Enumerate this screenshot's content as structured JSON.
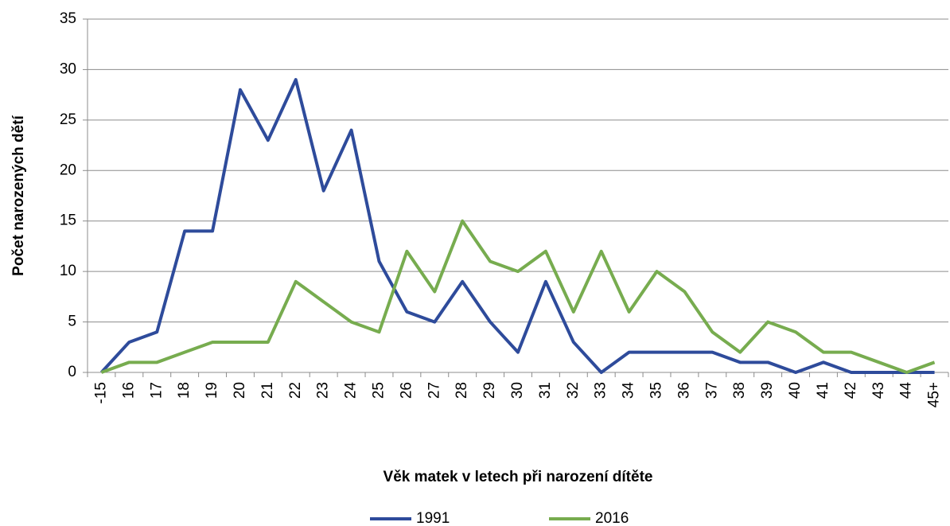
{
  "chart_data": {
    "type": "line",
    "x_label": "Věk matek v letech při narození dítěte",
    "y_label": "Počet narozených dětí",
    "categories": [
      "-15",
      "16",
      "17",
      "18",
      "19",
      "20",
      "21",
      "22",
      "23",
      "24",
      "25",
      "26",
      "27",
      "28",
      "29",
      "30",
      "31",
      "32",
      "33",
      "34",
      "35",
      "36",
      "37",
      "38",
      "39",
      "40",
      "41",
      "42",
      "43",
      "44",
      "45+"
    ],
    "series": [
      {
        "name": "1991",
        "color": "#2e4b9b",
        "values": [
          0,
          3,
          4,
          14,
          14,
          28,
          23,
          29,
          18,
          24,
          11,
          6,
          5,
          9,
          5,
          2,
          9,
          3,
          0,
          2,
          2,
          2,
          2,
          1,
          1,
          0,
          1,
          0,
          0,
          0,
          0
        ]
      },
      {
        "name": "2016",
        "color": "#77ac4f",
        "values": [
          0,
          1,
          1,
          2,
          3,
          3,
          3,
          9,
          7,
          5,
          4,
          12,
          8,
          15,
          11,
          10,
          12,
          6,
          12,
          6,
          10,
          8,
          4,
          2,
          5,
          4,
          2,
          2,
          1,
          0,
          1
        ]
      }
    ],
    "ylim": [
      0,
      35
    ],
    "yticks": [
      0,
      5,
      10,
      15,
      20,
      25,
      30,
      35
    ],
    "grid": true,
    "legend": "bottom"
  }
}
